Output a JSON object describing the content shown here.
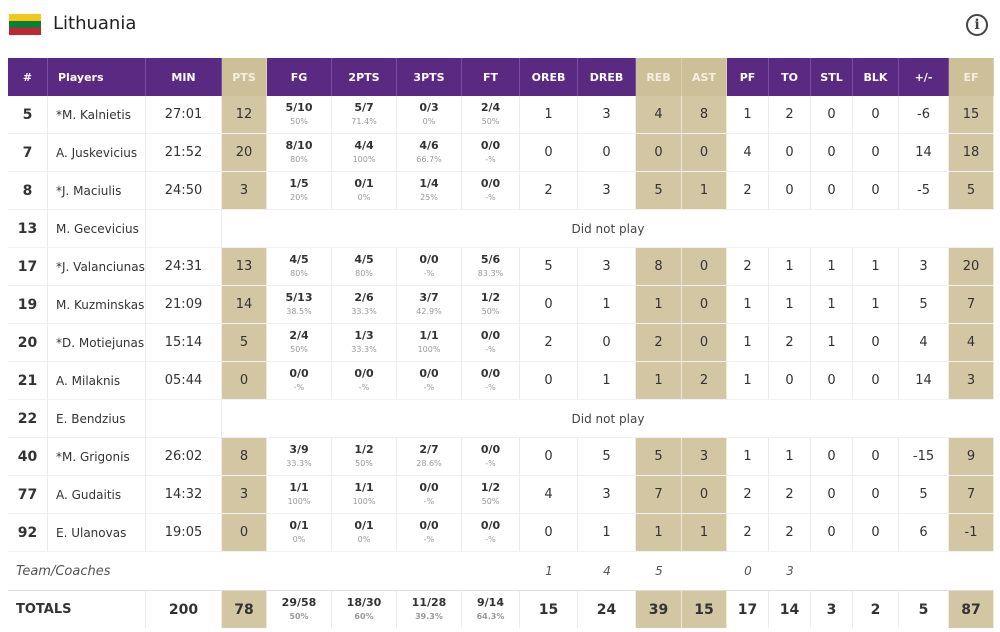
{
  "team": {
    "name": "Lithuania",
    "flag_colors": [
      "#f5c518",
      "#0a7d3b",
      "#c1272d"
    ]
  },
  "header_icon": "info-icon",
  "columns": [
    "#",
    "Players",
    "MIN",
    "PTS",
    "FG",
    "2PTS",
    "3PTS",
    "FT",
    "OREB",
    "DREB",
    "REB",
    "AST",
    "PF",
    "TO",
    "STL",
    "BLK",
    "+/-",
    "EF"
  ],
  "rows": [
    {
      "num": "5",
      "name": "*M. Kalnietis",
      "min": "27:01",
      "pts": "12",
      "fg": [
        "5/10",
        "50%"
      ],
      "p2": [
        "5/7",
        "71.4%"
      ],
      "p3": [
        "0/3",
        "0%"
      ],
      "ft": [
        "2/4",
        "50%"
      ],
      "oreb": "1",
      "dreb": "3",
      "reb": "4",
      "ast": "8",
      "pf": "1",
      "to": "2",
      "stl": "0",
      "blk": "0",
      "pm": "-6",
      "ef": "15"
    },
    {
      "num": "7",
      "name": "A. Juskevicius",
      "min": "21:52",
      "pts": "20",
      "fg": [
        "8/10",
        "80%"
      ],
      "p2": [
        "4/4",
        "100%"
      ],
      "p3": [
        "4/6",
        "66.7%"
      ],
      "ft": [
        "0/0",
        "-%"
      ],
      "oreb": "0",
      "dreb": "0",
      "reb": "0",
      "ast": "0",
      "pf": "4",
      "to": "0",
      "stl": "0",
      "blk": "0",
      "pm": "14",
      "ef": "18"
    },
    {
      "num": "8",
      "name": "*J. Maciulis",
      "min": "24:50",
      "pts": "3",
      "fg": [
        "1/5",
        "20%"
      ],
      "p2": [
        "0/1",
        "0%"
      ],
      "p3": [
        "1/4",
        "25%"
      ],
      "ft": [
        "0/0",
        "-%"
      ],
      "oreb": "2",
      "dreb": "3",
      "reb": "5",
      "ast": "1",
      "pf": "2",
      "to": "0",
      "stl": "0",
      "blk": "0",
      "pm": "-5",
      "ef": "5"
    },
    {
      "num": "13",
      "name": "M. Gecevicius",
      "dnp": "Did not play"
    },
    {
      "num": "17",
      "name": "*J. Valanciunas",
      "min": "24:31",
      "pts": "13",
      "fg": [
        "4/5",
        "80%"
      ],
      "p2": [
        "4/5",
        "80%"
      ],
      "p3": [
        "0/0",
        "-%"
      ],
      "ft": [
        "5/6",
        "83.3%"
      ],
      "oreb": "5",
      "dreb": "3",
      "reb": "8",
      "ast": "0",
      "pf": "2",
      "to": "1",
      "stl": "1",
      "blk": "1",
      "pm": "3",
      "ef": "20"
    },
    {
      "num": "19",
      "name": "M. Kuzminskas",
      "min": "21:09",
      "pts": "14",
      "fg": [
        "5/13",
        "38.5%"
      ],
      "p2": [
        "2/6",
        "33.3%"
      ],
      "p3": [
        "3/7",
        "42.9%"
      ],
      "ft": [
        "1/2",
        "50%"
      ],
      "oreb": "0",
      "dreb": "1",
      "reb": "1",
      "ast": "0",
      "pf": "1",
      "to": "1",
      "stl": "1",
      "blk": "1",
      "pm": "5",
      "ef": "7"
    },
    {
      "num": "20",
      "name": "*D. Motiejunas",
      "min": "15:14",
      "pts": "5",
      "fg": [
        "2/4",
        "50%"
      ],
      "p2": [
        "1/3",
        "33.3%"
      ],
      "p3": [
        "1/1",
        "100%"
      ],
      "ft": [
        "0/0",
        "-%"
      ],
      "oreb": "2",
      "dreb": "0",
      "reb": "2",
      "ast": "0",
      "pf": "1",
      "to": "2",
      "stl": "1",
      "blk": "0",
      "pm": "4",
      "ef": "4"
    },
    {
      "num": "21",
      "name": "A. Milaknis",
      "min": "05:44",
      "pts": "0",
      "fg": [
        "0/0",
        "-%"
      ],
      "p2": [
        "0/0",
        "-%"
      ],
      "p3": [
        "0/0",
        "-%"
      ],
      "ft": [
        "0/0",
        "-%"
      ],
      "oreb": "0",
      "dreb": "1",
      "reb": "1",
      "ast": "2",
      "pf": "1",
      "to": "0",
      "stl": "0",
      "blk": "0",
      "pm": "14",
      "ef": "3"
    },
    {
      "num": "22",
      "name": "E. Bendzius",
      "dnp": "Did not play"
    },
    {
      "num": "40",
      "name": "*M. Grigonis",
      "min": "26:02",
      "pts": "8",
      "fg": [
        "3/9",
        "33.3%"
      ],
      "p2": [
        "1/2",
        "50%"
      ],
      "p3": [
        "2/7",
        "28.6%"
      ],
      "ft": [
        "0/0",
        "-%"
      ],
      "oreb": "0",
      "dreb": "5",
      "reb": "5",
      "ast": "3",
      "pf": "1",
      "to": "1",
      "stl": "0",
      "blk": "0",
      "pm": "-15",
      "ef": "9"
    },
    {
      "num": "77",
      "name": "A. Gudaitis",
      "min": "14:32",
      "pts": "3",
      "fg": [
        "1/1",
        "100%"
      ],
      "p2": [
        "1/1",
        "100%"
      ],
      "p3": [
        "0/0",
        "-%"
      ],
      "ft": [
        "1/2",
        "50%"
      ],
      "oreb": "4",
      "dreb": "3",
      "reb": "7",
      "ast": "0",
      "pf": "2",
      "to": "2",
      "stl": "0",
      "blk": "0",
      "pm": "5",
      "ef": "7"
    },
    {
      "num": "92",
      "name": "E. Ulanovas",
      "min": "19:05",
      "pts": "0",
      "fg": [
        "0/1",
        "0%"
      ],
      "p2": [
        "0/1",
        "0%"
      ],
      "p3": [
        "0/0",
        "-%"
      ],
      "ft": [
        "0/0",
        "-%"
      ],
      "oreb": "0",
      "dreb": "1",
      "reb": "1",
      "ast": "1",
      "pf": "2",
      "to": "2",
      "stl": "0",
      "blk": "0",
      "pm": "6",
      "ef": "-1"
    }
  ],
  "coaches": {
    "label": "Team/Coaches",
    "oreb": "1",
    "dreb": "4",
    "reb": "5",
    "pf": "0",
    "to": "3"
  },
  "totals": {
    "label": "TOTALS",
    "min": "200",
    "pts": "78",
    "fg": [
      "29/58",
      "50%"
    ],
    "p2": [
      "18/30",
      "60%"
    ],
    "p3": [
      "11/28",
      "39.3%"
    ],
    "ft": [
      "9/14",
      "64.3%"
    ],
    "oreb": "15",
    "dreb": "24",
    "reb": "39",
    "ast": "15",
    "pf": "17",
    "to": "14",
    "stl": "3",
    "blk": "2",
    "pm": "5",
    "ef": "87"
  }
}
